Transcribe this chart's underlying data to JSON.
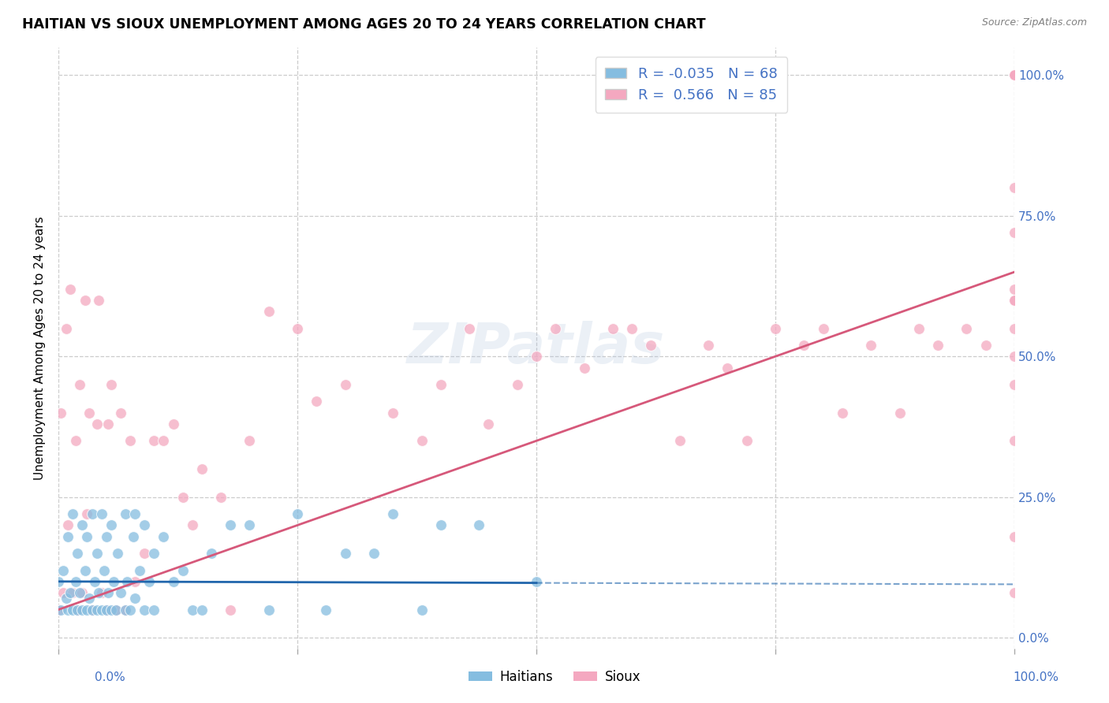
{
  "title": "HAITIAN VS SIOUX UNEMPLOYMENT AMONG AGES 20 TO 24 YEARS CORRELATION CHART",
  "source": "Source: ZipAtlas.com",
  "ylabel": "Unemployment Among Ages 20 to 24 years",
  "xlim": [
    0,
    1
  ],
  "ylim": [
    -0.02,
    1.05
  ],
  "haitians_color": "#85bde0",
  "sioux_color": "#f4a8c0",
  "haitians_line_color": "#2166ac",
  "sioux_line_color": "#d6587a",
  "haitians_line_solid_end": 0.5,
  "R_haitians": -0.035,
  "N_haitians": 68,
  "R_sioux": 0.566,
  "N_sioux": 85,
  "legend_color": "#4472c4",
  "watermark": "ZIPatlas",
  "haitians_scatter_x": [
    0.0,
    0.002,
    0.005,
    0.008,
    0.01,
    0.01,
    0.012,
    0.015,
    0.015,
    0.018,
    0.02,
    0.02,
    0.022,
    0.025,
    0.025,
    0.028,
    0.03,
    0.03,
    0.032,
    0.035,
    0.035,
    0.038,
    0.04,
    0.04,
    0.042,
    0.045,
    0.045,
    0.048,
    0.05,
    0.05,
    0.052,
    0.055,
    0.055,
    0.058,
    0.06,
    0.062,
    0.065,
    0.07,
    0.07,
    0.072,
    0.075,
    0.078,
    0.08,
    0.08,
    0.085,
    0.09,
    0.09,
    0.095,
    0.1,
    0.1,
    0.11,
    0.12,
    0.13,
    0.14,
    0.15,
    0.16,
    0.18,
    0.2,
    0.22,
    0.25,
    0.28,
    0.3,
    0.33,
    0.35,
    0.38,
    0.4,
    0.44,
    0.5
  ],
  "haitians_scatter_y": [
    0.1,
    0.05,
    0.12,
    0.07,
    0.05,
    0.18,
    0.08,
    0.05,
    0.22,
    0.1,
    0.05,
    0.15,
    0.08,
    0.05,
    0.2,
    0.12,
    0.05,
    0.18,
    0.07,
    0.05,
    0.22,
    0.1,
    0.05,
    0.15,
    0.08,
    0.05,
    0.22,
    0.12,
    0.05,
    0.18,
    0.08,
    0.05,
    0.2,
    0.1,
    0.05,
    0.15,
    0.08,
    0.05,
    0.22,
    0.1,
    0.05,
    0.18,
    0.07,
    0.22,
    0.12,
    0.05,
    0.2,
    0.1,
    0.05,
    0.15,
    0.18,
    0.1,
    0.12,
    0.05,
    0.05,
    0.15,
    0.2,
    0.2,
    0.05,
    0.22,
    0.05,
    0.15,
    0.15,
    0.22,
    0.05,
    0.2,
    0.2,
    0.1
  ],
  "sioux_scatter_x": [
    0.0,
    0.002,
    0.005,
    0.008,
    0.01,
    0.012,
    0.015,
    0.018,
    0.02,
    0.022,
    0.025,
    0.028,
    0.03,
    0.032,
    0.035,
    0.04,
    0.042,
    0.045,
    0.05,
    0.052,
    0.055,
    0.06,
    0.065,
    0.07,
    0.075,
    0.08,
    0.09,
    0.1,
    0.11,
    0.12,
    0.13,
    0.14,
    0.15,
    0.17,
    0.18,
    0.2,
    0.22,
    0.25,
    0.27,
    0.3,
    0.35,
    0.38,
    0.4,
    0.43,
    0.45,
    0.48,
    0.5,
    0.52,
    0.55,
    0.58,
    0.6,
    0.62,
    0.65,
    0.68,
    0.7,
    0.72,
    0.75,
    0.78,
    0.8,
    0.82,
    0.85,
    0.88,
    0.9,
    0.92,
    0.95,
    0.97,
    1.0,
    1.0,
    1.0,
    1.0,
    1.0,
    1.0,
    1.0,
    1.0,
    1.0,
    1.0,
    1.0,
    1.0,
    1.0,
    1.0,
    1.0,
    1.0,
    1.0,
    1.0
  ],
  "sioux_scatter_y": [
    0.05,
    0.4,
    0.08,
    0.55,
    0.2,
    0.62,
    0.08,
    0.35,
    0.05,
    0.45,
    0.08,
    0.6,
    0.22,
    0.4,
    0.05,
    0.38,
    0.6,
    0.08,
    0.05,
    0.38,
    0.45,
    0.05,
    0.4,
    0.05,
    0.35,
    0.1,
    0.15,
    0.35,
    0.35,
    0.38,
    0.25,
    0.2,
    0.3,
    0.25,
    0.05,
    0.35,
    0.58,
    0.55,
    0.42,
    0.45,
    0.4,
    0.35,
    0.45,
    0.55,
    0.38,
    0.45,
    0.5,
    0.55,
    0.48,
    0.55,
    0.55,
    0.52,
    0.35,
    0.52,
    0.48,
    0.35,
    0.55,
    0.52,
    0.55,
    0.4,
    0.52,
    0.4,
    0.55,
    0.52,
    0.55,
    0.52,
    0.6,
    1.0,
    1.0,
    1.0,
    1.0,
    1.0,
    1.0,
    1.0,
    0.8,
    0.5,
    0.6,
    0.45,
    0.62,
    0.08,
    0.18,
    0.35,
    0.55,
    0.72
  ],
  "sioux_line_y_at_0": 0.05,
  "sioux_line_y_at_1": 0.65,
  "haitians_line_y_at_0": 0.1,
  "haitians_line_y_at_1": 0.095,
  "ytick_values": [
    0.0,
    0.25,
    0.5,
    0.75,
    1.0
  ],
  "ytick_labels_right": [
    "0.0%",
    "25.0%",
    "50.0%",
    "75.0%",
    "100.0%"
  ],
  "xtick_values": [
    0.0,
    0.25,
    0.5,
    0.75,
    1.0
  ],
  "background_color": "#ffffff",
  "grid_color": "#cccccc"
}
